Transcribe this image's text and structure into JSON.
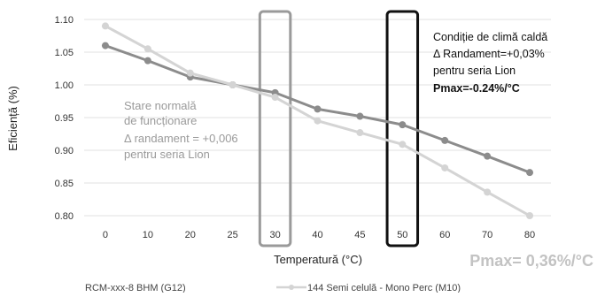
{
  "chart_data": {
    "type": "line",
    "categories": [
      "0",
      "10",
      "20",
      "25",
      "30",
      "40",
      "45",
      "50",
      "60",
      "70",
      "80"
    ],
    "xlabel": "Temperatură (°C)",
    "ylabel": "Eficiență (%)",
    "ylim": [
      0.8,
      1.1
    ],
    "yticks": [
      "0.80",
      "0.85",
      "0.90",
      "0.95",
      "1.00",
      "1.05",
      "1.10"
    ],
    "grid": "horizontal",
    "series": [
      {
        "name": "RCM-xxx-8 BHM (G12)",
        "color": "#8c8c8c",
        "values": [
          1.06,
          1.037,
          1.012,
          1.0,
          0.988,
          0.963,
          0.952,
          0.939,
          0.915,
          0.891,
          0.866
        ]
      },
      {
        "name": "144 Semi celulă - Mono Perc (M10)",
        "color": "#d4d4d4",
        "values": [
          1.09,
          1.055,
          1.018,
          1.0,
          0.981,
          0.945,
          0.927,
          0.909,
          0.873,
          0.836,
          0.8
        ]
      }
    ],
    "highlights": [
      {
        "category": "30",
        "color": "#9a9a9a"
      },
      {
        "category": "50",
        "color": "#111111"
      }
    ],
    "annotations": {
      "normal": [
        "Stare normală",
        "de funcționare",
        "Δ randament = +0,006",
        "pentru seria Lion"
      ],
      "warm": [
        "Condiție de climă caldă",
        "Δ Randament=+0,03%",
        "pentru seria Lion"
      ],
      "warm_bold": "Pmax=-0.24%/°C",
      "pmax_note": "Pmax= 0,36%/°C"
    }
  }
}
